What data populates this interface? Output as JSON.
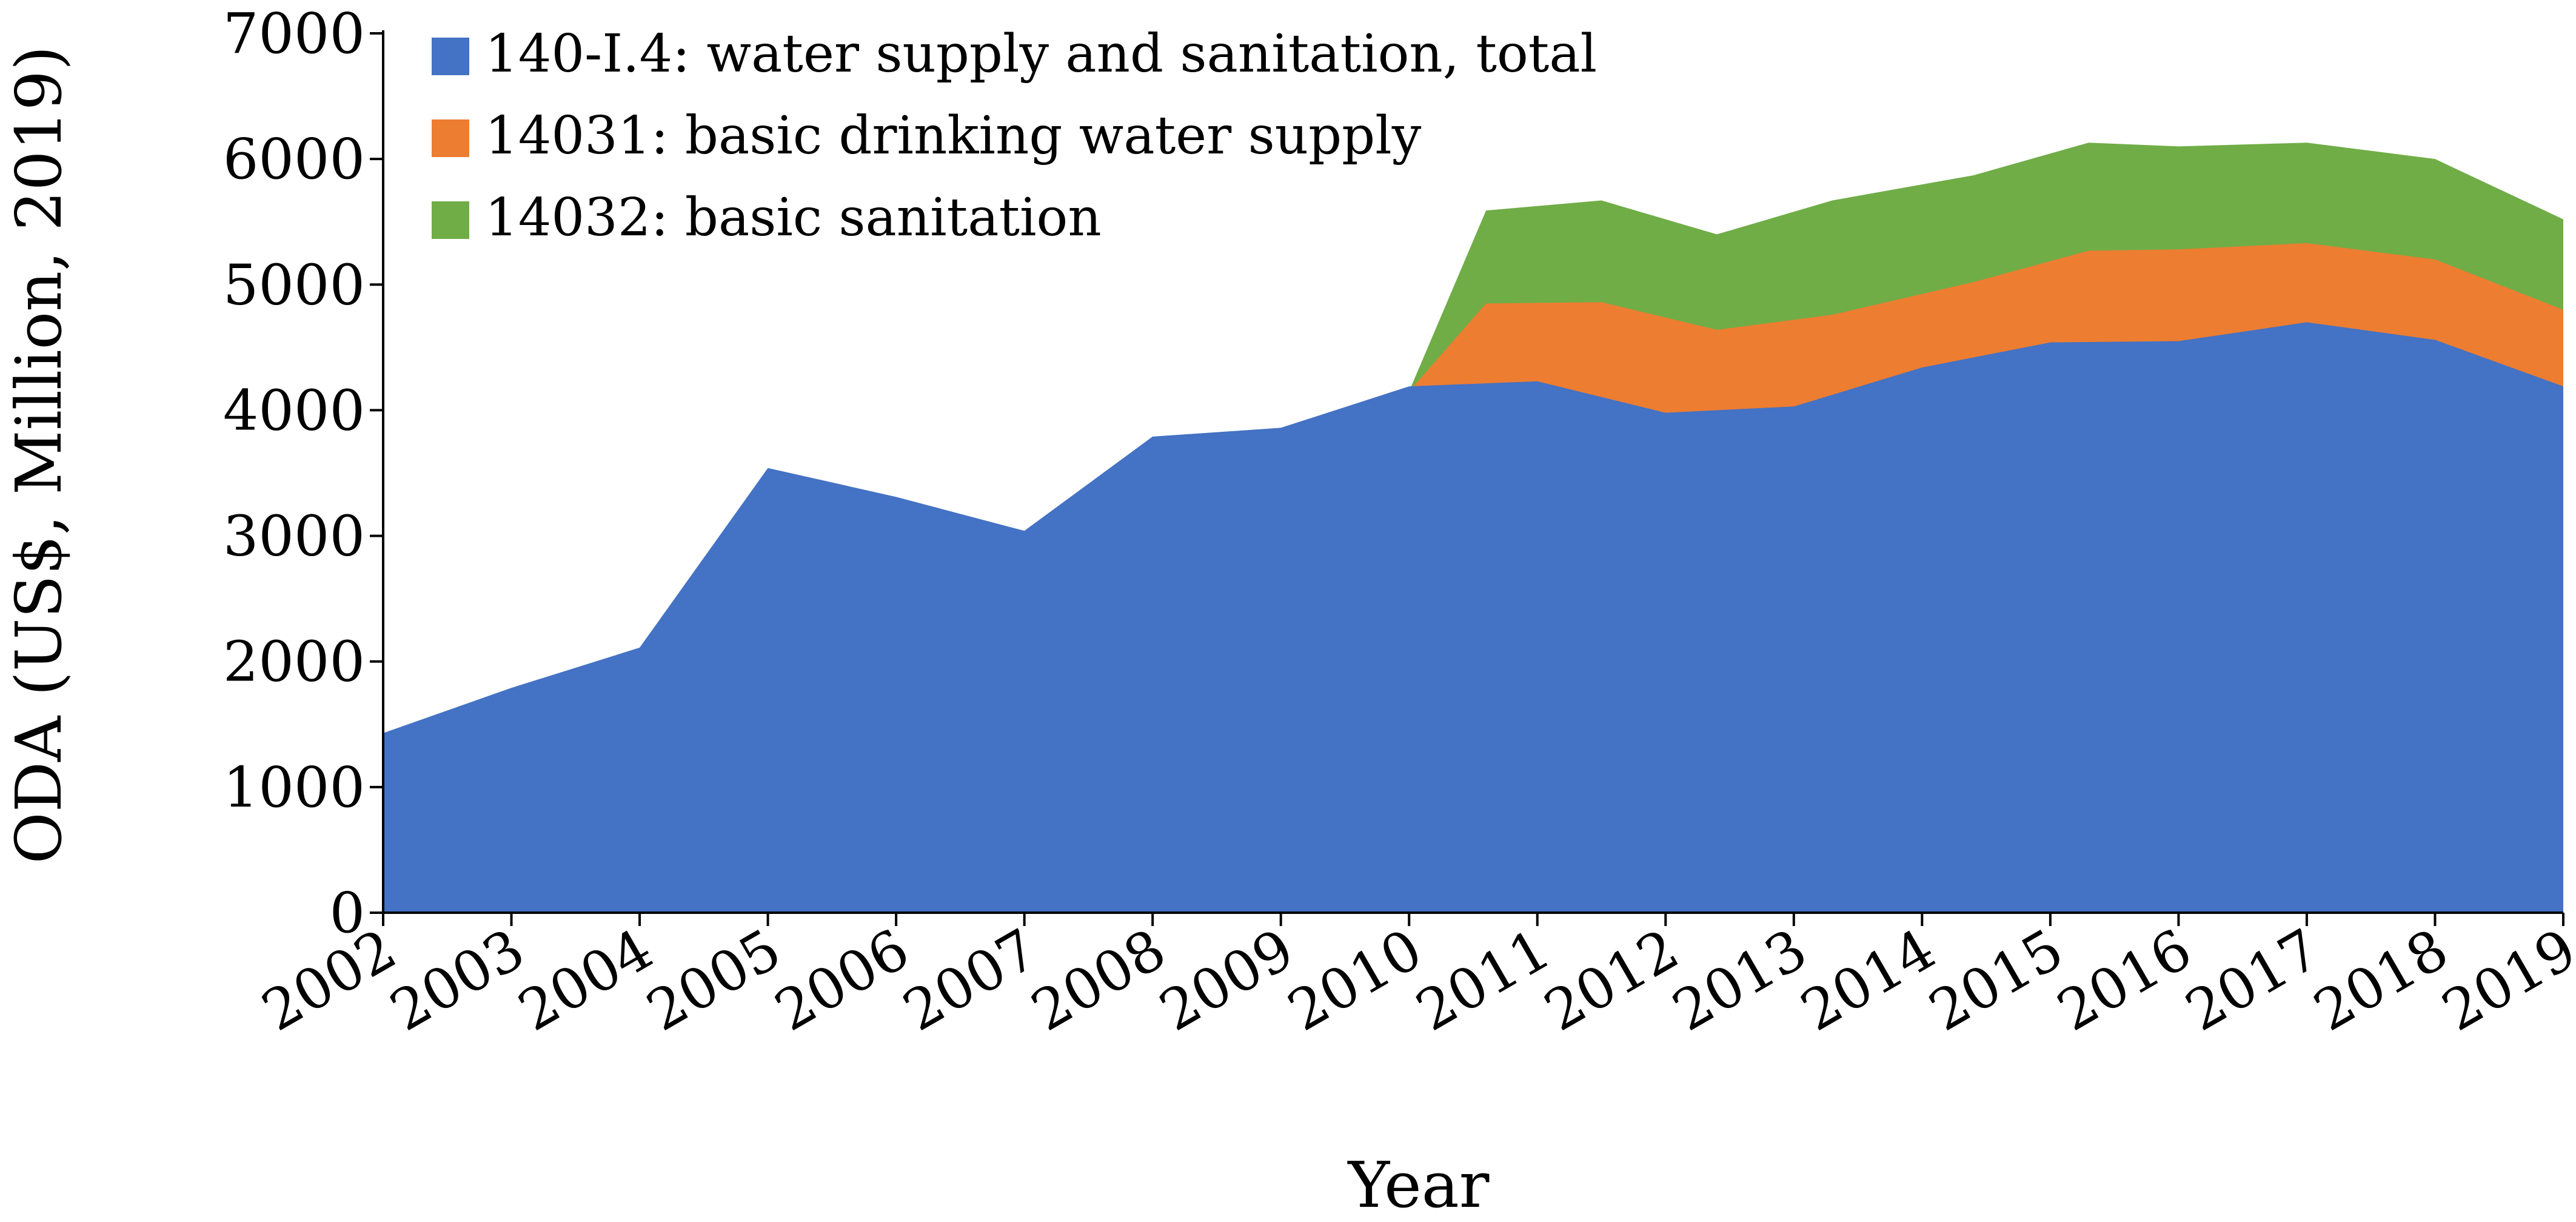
{
  "chart_data": {
    "type": "area",
    "title": "",
    "xlabel": "Year",
    "ylabel": "ODA (US$, Million, 2019)",
    "ylim": [
      0,
      7000
    ],
    "yticks": [
      0,
      1000,
      2000,
      3000,
      4000,
      5000,
      6000,
      7000
    ],
    "categories": [
      "2002",
      "2003",
      "2004",
      "2005",
      "2006",
      "2007",
      "2008",
      "2009",
      "2010",
      "2011",
      "2012",
      "2013",
      "2014",
      "2015",
      "2016",
      "2017",
      "2018",
      "2019"
    ],
    "legend_position": "top-left",
    "stacked": false,
    "series": [
      {
        "name": "14032: basic sanitation",
        "color": "#70AD47",
        "x": [
          2010,
          2010.6,
          2011.5,
          2012.4,
          2013.3,
          2014.4,
          2015.3,
          2016.0,
          2017.0,
          2018.0,
          2019.0
        ],
        "values": [
          4150,
          5590,
          5670,
          5400,
          5670,
          5870,
          6130,
          6100,
          6130,
          6000,
          5520
        ]
      },
      {
        "name": "14031: basic drinking water supply",
        "color": "#ED7D31",
        "x": [
          2010,
          2010.6,
          2011.5,
          2012.4,
          2013.3,
          2014.4,
          2015.3,
          2016.0,
          2017.0,
          2018.0,
          2019.0
        ],
        "values": [
          4150,
          4850,
          4860,
          4640,
          4760,
          5020,
          5270,
          5280,
          5330,
          5200,
          4800
        ]
      },
      {
        "name": "140-I.4: water supply and sanitation, total",
        "color": "#4472C4",
        "x": [
          2002,
          2003,
          2004,
          2005,
          2006,
          2007,
          2008,
          2009,
          2010,
          2011,
          2012,
          2013,
          2014,
          2015,
          2016,
          2017,
          2018,
          2019
        ],
        "values": [
          1430,
          1790,
          2110,
          3540,
          3310,
          3040,
          3790,
          3860,
          4190,
          4230,
          3980,
          4030,
          4340,
          4540,
          4550,
          4700,
          4560,
          4190
        ]
      }
    ],
    "legend": [
      {
        "label": "140-I.4: water supply and sanitation, total",
        "color": "#4472C4"
      },
      {
        "label": "14031: basic drinking water supply",
        "color": "#ED7D31"
      },
      {
        "label": "14032: basic sanitation",
        "color": "#70AD47"
      }
    ]
  }
}
